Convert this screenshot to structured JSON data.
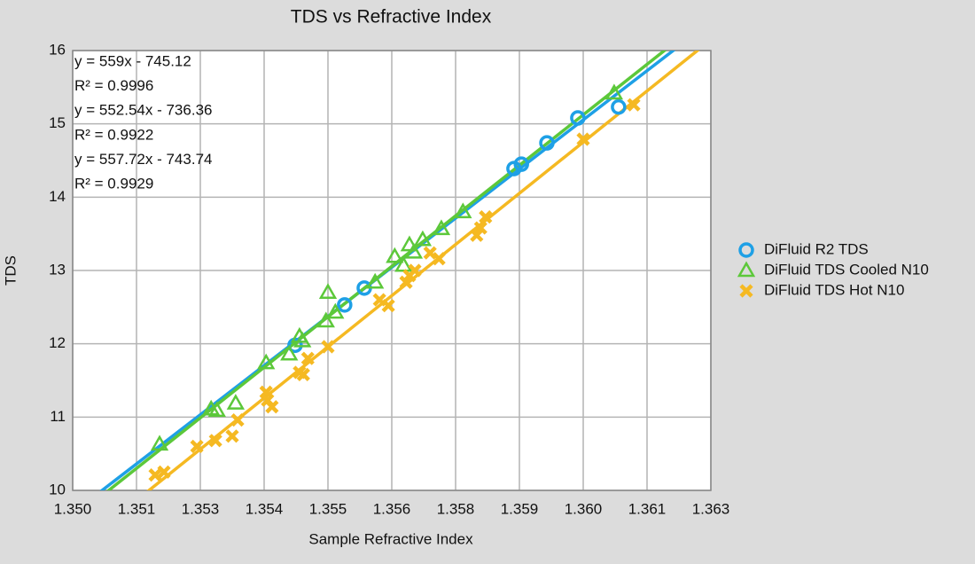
{
  "chart_data": {
    "type": "scatter",
    "title": "TDS vs Refractive Index",
    "x_label": "Sample Refractive Index",
    "y_label": "TDS",
    "annotations": [
      "y = 559x - 745.12",
      "R² = 0.9996",
      "y = 552.54x - 736.36",
      "R² = 0.9922",
      "y = 557.72x - 743.74",
      "R² = 0.9929"
    ],
    "xlim": [
      1.35,
      1.363
    ],
    "ylim": [
      10,
      16
    ],
    "xticks": [
      {
        "value": 1.35,
        "label": "1.350"
      },
      {
        "value": 1.3513,
        "label": "1.351"
      },
      {
        "value": 1.3526,
        "label": "1.353"
      },
      {
        "value": 1.3539,
        "label": "1.354"
      },
      {
        "value": 1.3552,
        "label": "1.355"
      },
      {
        "value": 1.3565,
        "label": "1.356"
      },
      {
        "value": 1.3578,
        "label": "1.358"
      },
      {
        "value": 1.3591,
        "label": "1.359"
      },
      {
        "value": 1.3604,
        "label": "1.360"
      },
      {
        "value": 1.3617,
        "label": "1.361"
      },
      {
        "value": 1.363,
        "label": "1.363"
      }
    ],
    "yticks": [
      10,
      11,
      12,
      13,
      14,
      15,
      16
    ],
    "grid": true,
    "trendline": true,
    "legend": "right",
    "series": [
      {
        "name": "DiFluid R2 TDS",
        "color": "#1ea0e6",
        "marker": "circle",
        "x": [
          1.35453,
          1.35554,
          1.35594,
          1.35899,
          1.35914,
          1.35966,
          1.36029,
          1.36112
        ],
        "values": [
          11.98,
          12.53,
          12.76,
          14.39,
          14.45,
          14.74,
          15.08,
          15.23
        ]
      },
      {
        "name": "DiFluid TDS Cooled N10",
        "color": "#5cc83a",
        "marker": "triangle",
        "x": [
          1.35177,
          1.35282,
          1.35294,
          1.35332,
          1.35394,
          1.35441,
          1.35462,
          1.35468,
          1.3552,
          1.35516,
          1.35535,
          1.35616,
          1.35656,
          1.35674,
          1.35686,
          1.35695,
          1.35713,
          1.35751,
          1.35795,
          1.36103
        ],
        "values": [
          10.63,
          11.11,
          11.09,
          11.19,
          11.74,
          11.86,
          12.1,
          12.04,
          12.7,
          12.31,
          12.43,
          12.84,
          13.19,
          13.07,
          13.35,
          13.25,
          13.42,
          13.57,
          13.8,
          15.42
        ]
      },
      {
        "name": "DiFluid TDS Hot N10",
        "color": "#f5b922",
        "marker": "x",
        "x": [
          1.35168,
          1.35186,
          1.35253,
          1.35291,
          1.35325,
          1.35336,
          1.35394,
          1.35397,
          1.35406,
          1.35462,
          1.3547,
          1.35479,
          1.3552,
          1.35625,
          1.35643,
          1.35679,
          1.35686,
          1.35697,
          1.35728,
          1.35746,
          1.35823,
          1.35831,
          1.35841,
          1.3604,
          1.36143
        ],
        "values": [
          10.21,
          10.25,
          10.6,
          10.68,
          10.74,
          10.96,
          11.34,
          11.23,
          11.14,
          11.61,
          11.58,
          11.8,
          11.96,
          12.6,
          12.52,
          12.84,
          12.93,
          13.0,
          13.24,
          13.16,
          13.48,
          13.58,
          13.73,
          14.79,
          15.26
        ]
      }
    ]
  }
}
